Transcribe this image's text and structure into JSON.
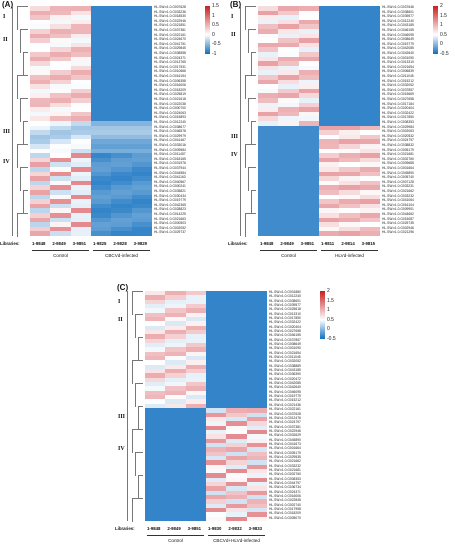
{
  "panels": [
    {
      "label": "(A)",
      "clusters": [
        "I",
        "II",
        "III",
        "IV"
      ],
      "libraries_label": "Libraries:",
      "libraries": [
        "1-9848",
        "2-9849",
        "3-9851",
        "1-9825",
        "2-9828",
        "3-9829"
      ],
      "groups": [
        "Control",
        "CBCVd-infected"
      ],
      "colorbar": {
        "ticks": [
          "1.5",
          "1",
          "0.5",
          "0",
          "-0.5",
          "-1"
        ]
      },
      "genes": [
        "HL.SW.v1.0.G007628",
        "HL.SW.v1.0.G033236",
        "HL.SW.v1.0.G018530",
        "HL.SW.v1.0.G022946",
        "HL.SW.v1.0.G021851",
        "HL.SW.v1.0.G037381",
        "HL.SW.v1.0.G022161",
        "HL.SW.v1.0.G024670",
        "HL.SW.v1.0.G041751",
        "HL.SW.v1.0.G029845",
        "HL.SW.v1.0.G038558",
        "HL.SW.v1.0.G024371",
        "HL.SW.v1.0.G013765",
        "HL.SW.v1.0.G017531",
        "HL.SW.v1.0.G010666",
        "HL.SW.v1.0.G016154",
        "HL.SW.v1.0.G006358",
        "HL.SW.v1.0.G016006",
        "HL.SW.v1.0.G018209",
        "HL.SW.v1.0.G025819",
        "HL.SW.v1.0.G021618",
        "HL.SW.v1.0.G022038",
        "HL.SW.v1.0.G000700",
        "HL.SW.v1.0.G024063",
        "HL.SW.v1.0.G015893",
        "HL.SW.v1.0.G012240",
        "HL.SW.v1.0.G038677",
        "HL.SW.v1.0.G046578",
        "HL.SW.v1.0.G029979",
        "HL.SW.v1.0.G041467",
        "HL.SW.v1.0.G033016",
        "HL.SW.v1.0.G009584",
        "HL.SW.v1.0.G011457",
        "HL.SW.v1.0.G018165",
        "HL.SW.v1.0.G031976",
        "HL.SW.v1.0.G037944",
        "HL.SW.v1.0.G044584",
        "HL.SW.v1.0.G041163",
        "HL.SW.v1.0.G040567",
        "HL.SW.v1.0.G000241",
        "HL.SW.v1.0.G035821",
        "HL.SW.v1.0.G030434",
        "HL.SW.v1.0.G019779",
        "HL.SW.v1.0.G042365",
        "HL.SW.v1.0.G028823",
        "HL.SW.v1.0.G014225",
        "HL.SW.v1.0.G021663",
        "HL.SW.v1.0.G000503",
        "HL.SW.v1.0.G002052",
        "HL.SW.v1.0.G029737"
      ]
    },
    {
      "label": "(B)",
      "clusters": [
        "I",
        "II",
        "III",
        "IV"
      ],
      "libraries_label": "Libraries:",
      "libraries": [
        "1-9848",
        "2-9849",
        "3-9851",
        "1-9811",
        "2-9814",
        "3-9815"
      ],
      "groups": [
        "Control",
        "HLVd-infected"
      ],
      "colorbar": {
        "ticks": [
          "2",
          "1.5",
          "1",
          "0.5",
          "0",
          "-0.5"
        ]
      },
      "genes": [
        "HL.SW.v1.0.G037646",
        "HL.SW.v1.0.G038601",
        "HL.SW.v1.0.G039577",
        "HL.SW.v1.0.G012240",
        "HL.SW.v1.0.G043185",
        "HL.SW.v1.0.G046155",
        "HL.SW.v1.0.G046095",
        "HL.SW.v1.0.G008649",
        "HL.SW.v1.0.G019779",
        "HL.SW.v1.0.G042085",
        "HL.SW.v1.0.G042640",
        "HL.SW.v1.0.G001090",
        "HL.SW.v1.0.G013310",
        "HL.SW.v1.0.G021654",
        "HL.SW.v1.0.G006839",
        "HL.SW.v1.0.G011045",
        "HL.SW.v1.0.G015212",
        "HL.SW.v1.0.G032052",
        "HL.SW.v1.0.G037857",
        "HL.SW.v1.0.G015669",
        "HL.SW.v1.0.G027658",
        "HL.SW.v1.0.G017184",
        "HL.SW.v1.0.G020404",
        "HL.SW.v1.0.G032422",
        "HL.SW.v1.0.G017850",
        "HL.SW.v1.0.G008353",
        "HL.SW.v1.0.G029984",
        "HL.SW.v1.0.G002063",
        "HL.SW.v1.0.G020532",
        "HL.SW.v1.0.G024797",
        "HL.SW.v1.0.G038832",
        "HL.SW.v1.0.G005179",
        "HL.SW.v1.0.G021681",
        "HL.SW.v1.0.G002760",
        "HL.SW.v1.0.G009685",
        "HL.SW.v1.0.G001664",
        "HL.SW.v1.0.G045890",
        "HL.SW.v1.0.G005740",
        "HL.SW.v1.0.G007128",
        "HL.SW.v1.0.G033231",
        "HL.SW.v1.0.G021662",
        "HL.SW.v1.0.G033232",
        "HL.SW.v1.0.G041064",
        "HL.SW.v1.0.G016104",
        "HL.SW.v1.0.G009901",
        "HL.SW.v1.0.G044662",
        "HL.SW.v1.0.G015087",
        "HL.SW.v1.0.G025735",
        "HL.SW.v1.0.G002946",
        "HL.SW.v1.0.G021296"
      ]
    },
    {
      "label": "(C)",
      "clusters": [
        "I",
        "II",
        "III",
        "IV"
      ],
      "libraries_label": "Libraries:",
      "libraries": [
        "1-9848",
        "2-9849",
        "3-9851",
        "1-9830",
        "2-9832",
        "3-9833"
      ],
      "groups": [
        "Control",
        "CBCVd+HLVd-infected"
      ],
      "colorbar": {
        "ticks": [
          "2",
          "1.5",
          "1",
          "0.5",
          "0",
          "-0.5"
        ]
      },
      "genes": [
        "HL.SW.v1.0.G001880",
        "HL.SW.v1.0.G012240",
        "HL.SW.v1.0.G038601",
        "HL.SW.v1.0.G039577",
        "HL.SW.v1.0.G025618",
        "HL.SW.v1.0.G013310",
        "HL.SW.v1.0.G017850",
        "HL.SW.v1.0.G032422",
        "HL.SW.v1.0.G020404",
        "HL.SW.v1.0.G027658",
        "HL.SW.v1.0.G046155",
        "HL.SW.v1.0.G037857",
        "HL.SW.v1.0.G008649",
        "HL.SW.v1.0.G001090",
        "HL.SW.v1.0.G021654",
        "HL.SW.v1.0.G011045",
        "HL.SW.v1.0.G032052",
        "HL.SW.v1.0.G038889",
        "HL.SW.v1.0.G043185",
        "HL.SW.v1.0.G036390",
        "HL.SW.v1.0.G020472",
        "HL.SW.v1.0.G042085",
        "HL.SW.v1.0.G042640",
        "HL.SW.v1.0.G046095",
        "HL.SW.v1.0.G019779",
        "HL.SW.v1.0.G015212",
        "HL.SW.v1.0.G021436",
        "HL.SW.v1.0.G022161",
        "HL.SW.v1.0.G037628",
        "HL.SW.v1.0.G012476",
        "HL.SW.v1.0.G024797",
        "HL.SW.v1.0.G037381",
        "HL.SW.v1.0.G022946",
        "HL.SW.v1.0.G032629",
        "HL.SW.v1.0.G045890",
        "HL.SW.v1.0.G041673",
        "HL.SW.v1.0.G001664",
        "HL.SW.v1.0.G005179",
        "HL.SW.v1.0.G029535",
        "HL.SW.v1.0.G021662",
        "HL.SW.v1.0.G033232",
        "HL.SW.v1.0.G021681",
        "HL.SW.v1.0.G002760",
        "HL.SW.v1.0.G008353",
        "HL.SW.v1.0.G044797",
        "HL.SW.v1.0.G036734",
        "HL.SW.v1.0.G024371",
        "HL.SW.v1.0.G016006",
        "HL.SW.v1.0.G022845",
        "HL.SW.v1.0.G002740",
        "HL.SW.v1.0.G017958",
        "HL.SW.v1.0.G018209",
        "HL.SW.v1.0.G005070"
      ]
    }
  ]
}
